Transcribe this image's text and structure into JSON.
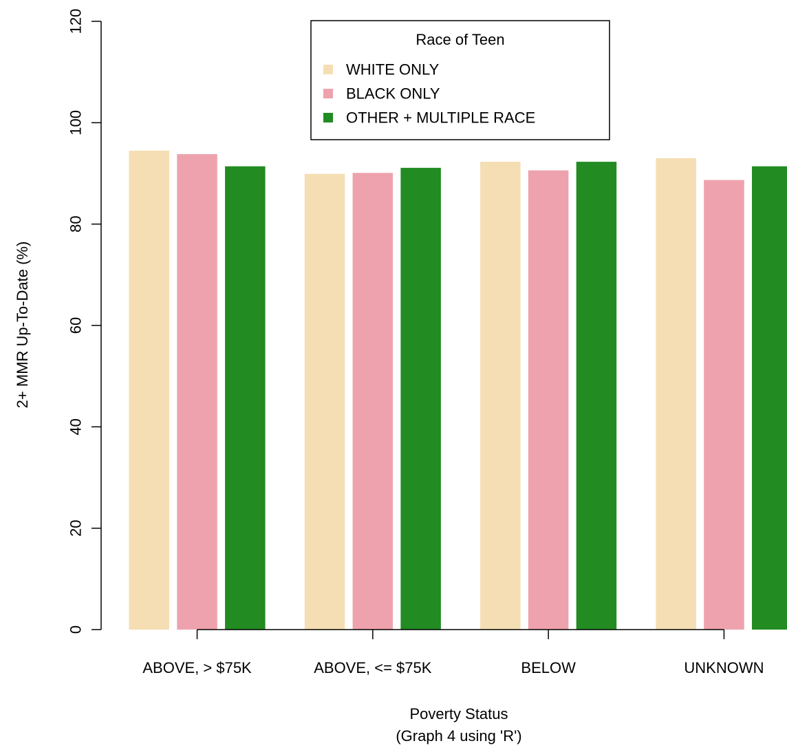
{
  "chart_data": {
    "type": "bar",
    "title": "",
    "xlabel": "Poverty Status",
    "xlabel_sub": "(Graph 4 using 'R')",
    "ylabel": "2+ MMR Up-To-Date (%)",
    "ylim": [
      0,
      120
    ],
    "yticks": [
      0,
      20,
      40,
      60,
      80,
      100,
      120
    ],
    "categories": [
      "ABOVE, > $75K",
      "ABOVE, <= $75K",
      "BELOW",
      "UNKNOWN"
    ],
    "series": [
      {
        "name": "WHITE ONLY",
        "color": "#F5DEB3",
        "values": [
          94.5,
          89.9,
          92.3,
          93.0
        ]
      },
      {
        "name": "BLACK ONLY",
        "color": "#EEA2AD",
        "values": [
          93.8,
          90.1,
          90.6,
          88.7
        ]
      },
      {
        "name": "OTHER + MULTIPLE RACE",
        "color": "#228B22",
        "values": [
          91.4,
          91.1,
          92.3,
          91.4
        ]
      }
    ],
    "legend": {
      "title": "Race of Teen",
      "position": "top-center"
    },
    "grid": false
  }
}
